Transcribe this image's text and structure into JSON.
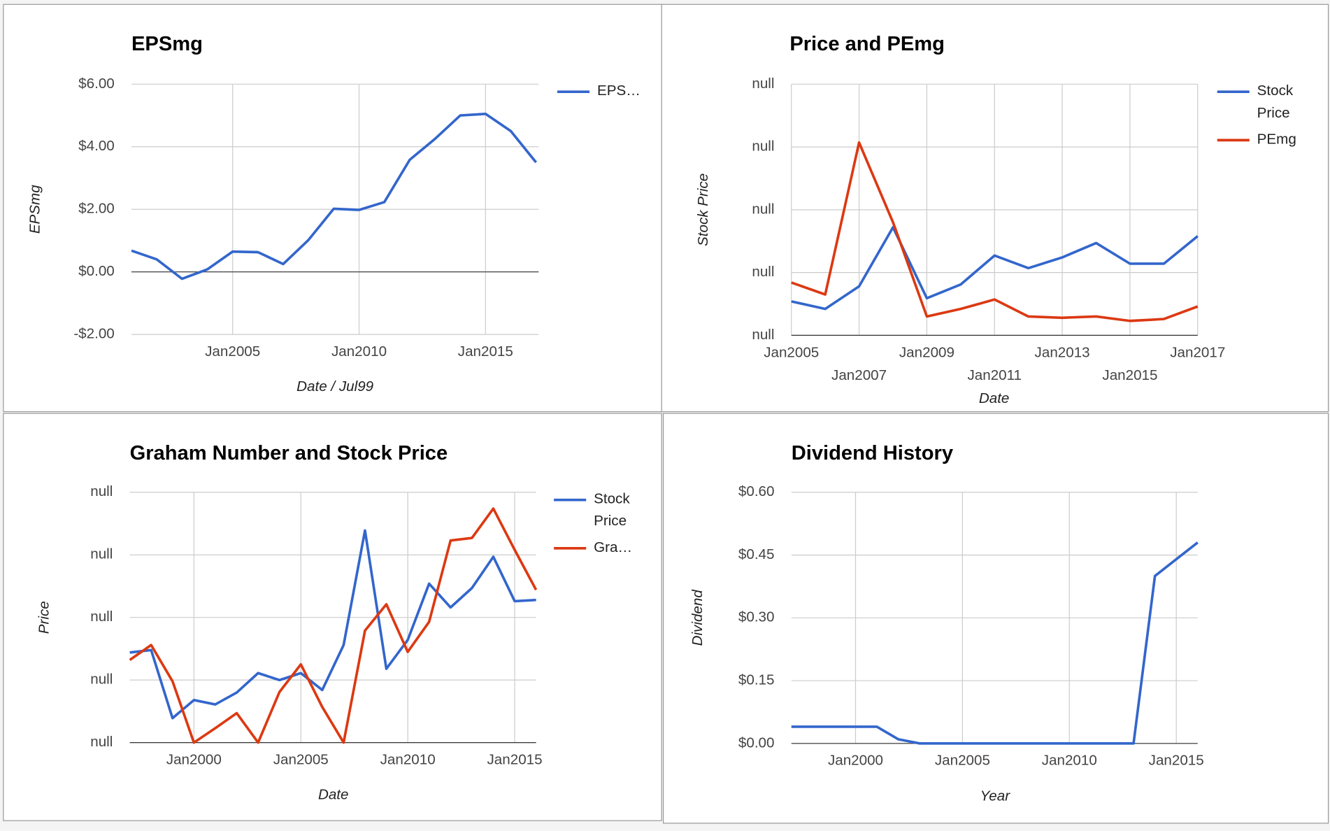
{
  "chart_data": [
    {
      "type": "line",
      "title": "EPSmg",
      "x_label": "Date / Jul99",
      "y_label": "EPSmg",
      "x": [
        2001,
        2002,
        2003,
        2004,
        2005,
        2006,
        2007,
        2008,
        2009,
        2010,
        2011,
        2012,
        2013,
        2014,
        2015,
        2016,
        2017
      ],
      "series": [
        {
          "name": "EPS…",
          "color": "#3366cc",
          "values": [
            0.68,
            0.4,
            -0.22,
            0.08,
            0.65,
            0.63,
            0.25,
            1.02,
            2.02,
            1.98,
            2.23,
            3.58,
            4.25,
            5.0,
            5.05,
            4.5,
            3.5
          ]
        }
      ],
      "xlim": [
        2001,
        2017.1
      ],
      "xticks": [
        {
          "value": 2005,
          "label": "Jan2005"
        },
        {
          "value": 2010,
          "label": "Jan2010"
        },
        {
          "value": 2015,
          "label": "Jan2015"
        }
      ],
      "ylim": [
        -2,
        6
      ],
      "yticks": [
        {
          "value": -2,
          "label": "-$2.00"
        },
        {
          "value": 0,
          "label": "$0.00"
        },
        {
          "value": 2,
          "label": "$2.00"
        },
        {
          "value": 4,
          "label": "$4.00"
        },
        {
          "value": 6,
          "label": "$6.00"
        }
      ],
      "grid": true,
      "legend": "right"
    },
    {
      "type": "line",
      "title": "Price and PEmg",
      "x_label": "Date",
      "y_label": "Stock Price",
      "x": [
        2005,
        2006,
        2007,
        2008,
        2009,
        2010,
        2011,
        2012,
        2013,
        2014,
        2015,
        2016,
        2017
      ],
      "series": [
        {
          "name": "Stock Price",
          "color": "#3366cc",
          "values": [
            0.54,
            0.42,
            0.78,
            1.72,
            0.59,
            0.81,
            1.27,
            1.07,
            1.24,
            1.47,
            1.14,
            1.14,
            1.58
          ]
        },
        {
          "name": "PEmg",
          "color": "#dc3912",
          "values": [
            0.84,
            0.65,
            3.07,
            1.8,
            0.3,
            0.42,
            0.57,
            0.3,
            0.28,
            0.3,
            0.23,
            0.26,
            0.46
          ]
        }
      ],
      "xlim": [
        2005,
        2017
      ],
      "xticks": [
        {
          "value": 2005,
          "label": "Jan2005"
        },
        {
          "value": 2007,
          "label": "Jan2007"
        },
        {
          "value": 2009,
          "label": "Jan2009"
        },
        {
          "value": 2011,
          "label": "Jan2011"
        },
        {
          "value": 2013,
          "label": "Jan2013"
        },
        {
          "value": 2015,
          "label": "Jan2015"
        },
        {
          "value": 2017,
          "label": "Jan2017"
        }
      ],
      "ylim": [
        0,
        4
      ],
      "yticks": [
        {
          "value": 0,
          "label": "null"
        },
        {
          "value": 1,
          "label": "null"
        },
        {
          "value": 2,
          "label": "null"
        },
        {
          "value": 3,
          "label": "null"
        },
        {
          "value": 4,
          "label": "null"
        }
      ],
      "grid": true,
      "legend": "right"
    },
    {
      "type": "line",
      "title": "Graham Number and Stock Price",
      "x_label": "Date",
      "y_label": "Price",
      "x": [
        1997,
        1998,
        1999,
        2000,
        2001,
        2002,
        2003,
        2004,
        2005,
        2006,
        2007,
        2008,
        2009,
        2010,
        2011,
        2012,
        2013,
        2014,
        2015,
        2016
      ],
      "series": [
        {
          "name": "Stock Price",
          "color": "#3366cc",
          "values": [
            1.44,
            1.48,
            0.39,
            0.68,
            0.61,
            0.8,
            1.11,
            1.0,
            1.11,
            0.84,
            1.56,
            3.39,
            1.18,
            1.64,
            2.54,
            2.16,
            2.47,
            2.97,
            2.26,
            2.28
          ]
        },
        {
          "name": "Gra…",
          "color": "#dc3912",
          "values": [
            1.32,
            1.56,
            0.98,
            0,
            0.23,
            0.47,
            0,
            0.81,
            1.25,
            0.57,
            0,
            1.79,
            2.21,
            1.45,
            1.93,
            3.23,
            3.27,
            3.74,
            3.08,
            2.44
          ]
        }
      ],
      "xlim": [
        1997,
        2016
      ],
      "xticks": [
        {
          "value": 2000,
          "label": "Jan2000"
        },
        {
          "value": 2005,
          "label": "Jan2005"
        },
        {
          "value": 2010,
          "label": "Jan2010"
        },
        {
          "value": 2015,
          "label": "Jan2015"
        }
      ],
      "ylim": [
        0,
        4
      ],
      "yticks": [
        {
          "value": 0,
          "label": "null"
        },
        {
          "value": 1,
          "label": "null"
        },
        {
          "value": 2,
          "label": "null"
        },
        {
          "value": 3,
          "label": "null"
        },
        {
          "value": 4,
          "label": "null"
        }
      ],
      "grid": true,
      "legend": "right"
    },
    {
      "type": "line",
      "title": "Dividend History",
      "x_label": "Year",
      "y_label": "Dividend",
      "x": [
        1997,
        1998,
        1999,
        2000,
        2001,
        2002,
        2003,
        2004,
        2005,
        2006,
        2007,
        2008,
        2009,
        2010,
        2011,
        2012,
        2013,
        2014,
        2015,
        2016
      ],
      "series": [
        {
          "name": "Dividend",
          "color": "#3366cc",
          "values": [
            0.04,
            0.04,
            0.04,
            0.04,
            0.04,
            0.01,
            0,
            0,
            0,
            0,
            0,
            0,
            0,
            0,
            0,
            0,
            0,
            0.4,
            0.44,
            0.48
          ]
        }
      ],
      "xlim": [
        1997,
        2016
      ],
      "xticks": [
        {
          "value": 2000,
          "label": "Jan2000"
        },
        {
          "value": 2005,
          "label": "Jan2005"
        },
        {
          "value": 2010,
          "label": "Jan2010"
        },
        {
          "value": 2015,
          "label": "Jan2015"
        }
      ],
      "ylim": [
        0,
        0.6
      ],
      "yticks": [
        {
          "value": 0,
          "label": "$0.00"
        },
        {
          "value": 0.15,
          "label": "$0.15"
        },
        {
          "value": 0.3,
          "label": "$0.30"
        },
        {
          "value": 0.45,
          "label": "$0.45"
        },
        {
          "value": 0.6,
          "label": "$0.60"
        }
      ],
      "grid": true,
      "legend": "none"
    }
  ]
}
